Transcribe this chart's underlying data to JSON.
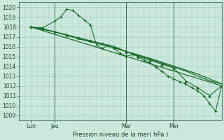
{
  "bg_color": "#cce8dc",
  "grid_color": "#99ccbb",
  "line_color": "#1a6b2a",
  "ylim": [
    1008.5,
    1020.5
  ],
  "yticks": [
    1009,
    1010,
    1011,
    1012,
    1013,
    1014,
    1015,
    1016,
    1017,
    1018,
    1019,
    1020
  ],
  "xlabel": "Pression niveau de la mer( hPa )",
  "xtick_labels": [
    "Lun",
    "Jeu",
    "Mar",
    "Mer"
  ],
  "xtick_positions": [
    0,
    24,
    96,
    144
  ],
  "xlim": [
    -12,
    192
  ],
  "vline_positions": [
    24,
    96,
    144
  ],
  "line1_x": [
    0,
    12,
    24,
    30,
    36,
    42,
    48,
    54,
    60,
    66,
    72,
    78,
    84,
    90,
    96,
    102,
    108,
    114,
    120,
    126,
    132,
    138,
    144,
    150,
    156,
    162,
    168,
    174,
    180,
    186,
    192
  ],
  "line1_y": [
    1018.0,
    1017.9,
    1018.6,
    1019.0,
    1019.8,
    1019.7,
    1019.2,
    1018.7,
    1018.2,
    1016.2,
    1015.8,
    1016.1,
    1015.8,
    1015.3,
    1015.0,
    1015.2,
    1015.0,
    1014.6,
    1014.3,
    1013.9,
    1013.5,
    1013.0,
    1012.7,
    1012.4,
    1012.2,
    1011.8,
    1011.5,
    1011.0,
    1010.2,
    1009.4,
    1012.0
  ],
  "line2_x": [
    0,
    24,
    48,
    72,
    96,
    120,
    144,
    168,
    192
  ],
  "line2_y": [
    1018.0,
    1017.5,
    1016.8,
    1016.2,
    1015.5,
    1014.8,
    1014.0,
    1013.2,
    1012.2
  ],
  "line3_x": [
    0,
    12,
    24,
    36,
    48,
    60,
    72,
    84,
    96,
    108,
    120,
    132,
    144,
    156,
    168,
    180,
    192
  ],
  "line3_y": [
    1018.0,
    1017.8,
    1017.5,
    1017.2,
    1016.8,
    1016.5,
    1016.2,
    1015.9,
    1015.5,
    1015.1,
    1014.7,
    1014.3,
    1013.9,
    1013.5,
    1013.0,
    1012.5,
    1012.2
  ],
  "line4_x": [
    0,
    192
  ],
  "line4_y": [
    1018.0,
    1012.0
  ],
  "line5_x": [
    0,
    12,
    24,
    36,
    48,
    60,
    72,
    84,
    96,
    108,
    120,
    132,
    144,
    156,
    168,
    180,
    192
  ],
  "line5_y": [
    1018.0,
    1017.8,
    1017.5,
    1017.2,
    1016.9,
    1016.6,
    1016.3,
    1016.0,
    1015.5,
    1015.0,
    1014.6,
    1014.2,
    1013.8,
    1012.5,
    1011.8,
    1011.0,
    1012.0
  ]
}
